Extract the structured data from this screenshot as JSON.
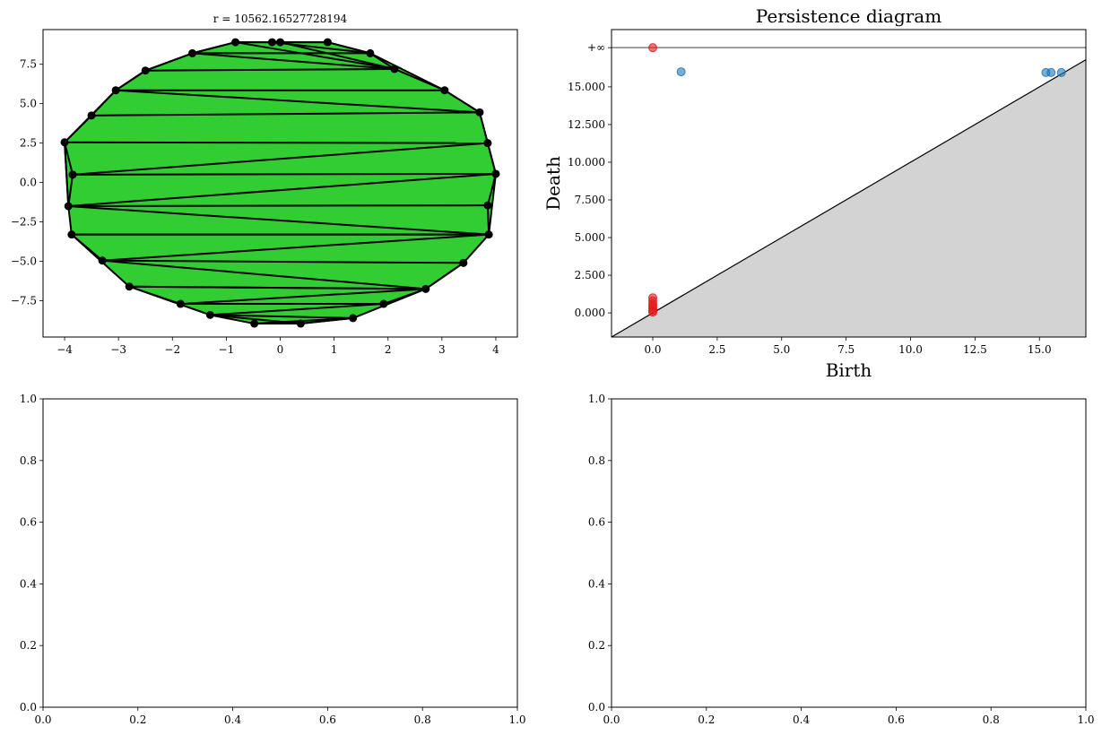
{
  "chart_data": [
    {
      "id": "complex",
      "type": "scatter",
      "title": "r = 10562.16527728194",
      "xlim": [
        -4.4,
        4.4
      ],
      "ylim": [
        -9.8,
        9.7
      ],
      "x_ticks": [
        {
          "v": -4,
          "label": "−4"
        },
        {
          "v": -3,
          "label": "−3"
        },
        {
          "v": -2,
          "label": "−2"
        },
        {
          "v": -1,
          "label": "−1"
        },
        {
          "v": 0,
          "label": "0"
        },
        {
          "v": 1,
          "label": "1"
        },
        {
          "v": 2,
          "label": "2"
        },
        {
          "v": 3,
          "label": "3"
        },
        {
          "v": 4,
          "label": "4"
        }
      ],
      "y_ticks": [
        {
          "v": -7.5,
          "label": "−7.5"
        },
        {
          "v": -5,
          "label": "−5.0"
        },
        {
          "v": -2.5,
          "label": "−2.5"
        },
        {
          "v": 0,
          "label": "0.0"
        },
        {
          "v": 2.5,
          "label": "2.5"
        },
        {
          "v": 5,
          "label": "5.0"
        },
        {
          "v": 7.5,
          "label": "7.5"
        }
      ],
      "fill_color": "#32cd32",
      "points": [
        [
          -0.83,
          8.9
        ],
        [
          -0.15,
          8.9
        ],
        [
          0.0,
          8.9
        ],
        [
          0.88,
          8.9
        ],
        [
          1.67,
          8.2
        ],
        [
          2.12,
          7.2
        ],
        [
          -1.63,
          8.2
        ],
        [
          -2.5,
          7.1
        ],
        [
          -3.05,
          5.85
        ],
        [
          3.05,
          5.85
        ],
        [
          3.7,
          4.45
        ],
        [
          -3.5,
          4.25
        ],
        [
          -4.0,
          2.55
        ],
        [
          3.85,
          2.5
        ],
        [
          4.0,
          0.55
        ],
        [
          -3.85,
          0.5
        ],
        [
          -3.93,
          -1.5
        ],
        [
          3.85,
          -1.45
        ],
        [
          3.87,
          -3.3
        ],
        [
          -3.87,
          -3.3
        ],
        [
          -3.3,
          -4.95
        ],
        [
          3.4,
          -5.1
        ],
        [
          2.7,
          -6.75
        ],
        [
          -2.8,
          -6.6
        ],
        [
          -1.85,
          -7.7
        ],
        [
          1.92,
          -7.7
        ],
        [
          -1.3,
          -8.4
        ],
        [
          1.35,
          -8.6
        ],
        [
          -0.48,
          -8.95
        ],
        [
          0.38,
          -8.95
        ]
      ],
      "edges": [
        [
          0,
          1
        ],
        [
          1,
          2
        ],
        [
          2,
          3
        ],
        [
          3,
          4
        ],
        [
          4,
          5
        ],
        [
          0,
          6
        ],
        [
          6,
          7
        ],
        [
          7,
          8
        ],
        [
          5,
          9
        ],
        [
          9,
          10
        ],
        [
          8,
          11
        ],
        [
          11,
          12
        ],
        [
          10,
          13
        ],
        [
          13,
          14
        ],
        [
          12,
          15
        ],
        [
          15,
          16
        ],
        [
          14,
          16
        ],
        [
          16,
          17
        ],
        [
          17,
          18
        ],
        [
          18,
          19
        ],
        [
          19,
          20
        ],
        [
          20,
          21
        ],
        [
          21,
          22
        ],
        [
          22,
          23
        ],
        [
          23,
          24
        ],
        [
          24,
          25
        ],
        [
          25,
          26
        ],
        [
          26,
          27
        ],
        [
          27,
          28
        ],
        [
          28,
          29
        ],
        [
          27,
          29
        ],
        [
          25,
          22
        ],
        [
          0,
          5
        ],
        [
          6,
          5
        ],
        [
          7,
          5
        ],
        [
          8,
          9
        ],
        [
          8,
          10
        ],
        [
          11,
          10
        ],
        [
          12,
          13
        ],
        [
          15,
          13
        ],
        [
          15,
          14
        ],
        [
          16,
          18
        ],
        [
          19,
          18
        ],
        [
          20,
          18
        ],
        [
          20,
          22
        ],
        [
          23,
          22
        ],
        [
          24,
          22
        ],
        [
          26,
          29
        ],
        [
          1,
          4
        ],
        [
          6,
          4
        ],
        [
          2,
          5
        ],
        [
          12,
          16
        ],
        [
          14,
          17
        ]
      ]
    },
    {
      "id": "persistence",
      "type": "scatter",
      "title": "Persistence diagram",
      "xlabel": "Birth",
      "ylabel": "Death",
      "xlim": [
        -1.6,
        16.8
      ],
      "ylim": [
        -1.6,
        18.8
      ],
      "inf_value": 17.6,
      "inf_label": "+∞",
      "x_ticks": [
        {
          "v": 0,
          "label": "0.0"
        },
        {
          "v": 2.5,
          "label": "2.5"
        },
        {
          "v": 5,
          "label": "5.0"
        },
        {
          "v": 7.5,
          "label": "7.5"
        },
        {
          "v": 10,
          "label": "10.0"
        },
        {
          "v": 12.5,
          "label": "12.5"
        },
        {
          "v": 15,
          "label": "15.0"
        }
      ],
      "y_ticks": [
        {
          "v": 0,
          "label": "0.000"
        },
        {
          "v": 2.5,
          "label": "2.500"
        },
        {
          "v": 5,
          "label": "5.000"
        },
        {
          "v": 7.5,
          "label": "7.500"
        },
        {
          "v": 10,
          "label": "10.000"
        },
        {
          "v": 12.5,
          "label": "12.500"
        },
        {
          "v": 15,
          "label": "15.000"
        }
      ],
      "series": [
        {
          "color": "#e31a1c",
          "points": [
            [
              0,
              17.6
            ],
            [
              0,
              1.0
            ],
            [
              0,
              0.8
            ],
            [
              0,
              0.6
            ],
            [
              0,
              0.45
            ],
            [
              0,
              0.3
            ],
            [
              0,
              0.15
            ],
            [
              0,
              0.05
            ]
          ]
        },
        {
          "color": "#1f77b4",
          "points": [
            [
              1.1,
              16.0
            ],
            [
              15.25,
              15.95
            ],
            [
              15.45,
              15.95
            ],
            [
              15.85,
              15.95
            ]
          ]
        }
      ]
    },
    {
      "id": "empty-left",
      "type": "scatter",
      "xlim": [
        0,
        1
      ],
      "ylim": [
        0,
        1
      ],
      "x_ticks": [
        {
          "v": 0,
          "label": "0.0"
        },
        {
          "v": 0.2,
          "label": "0.2"
        },
        {
          "v": 0.4,
          "label": "0.4"
        },
        {
          "v": 0.6,
          "label": "0.6"
        },
        {
          "v": 0.8,
          "label": "0.8"
        },
        {
          "v": 1,
          "label": "1.0"
        }
      ],
      "y_ticks": [
        {
          "v": 0,
          "label": "0.0"
        },
        {
          "v": 0.2,
          "label": "0.2"
        },
        {
          "v": 0.4,
          "label": "0.4"
        },
        {
          "v": 0.6,
          "label": "0.6"
        },
        {
          "v": 0.8,
          "label": "0.8"
        },
        {
          "v": 1,
          "label": "1.0"
        }
      ]
    },
    {
      "id": "empty-right",
      "type": "scatter",
      "xlim": [
        0,
        1
      ],
      "ylim": [
        0,
        1
      ],
      "x_ticks": [
        {
          "v": 0,
          "label": "0.0"
        },
        {
          "v": 0.2,
          "label": "0.2"
        },
        {
          "v": 0.4,
          "label": "0.4"
        },
        {
          "v": 0.6,
          "label": "0.6"
        },
        {
          "v": 0.8,
          "label": "0.8"
        },
        {
          "v": 1,
          "label": "1.0"
        }
      ],
      "y_ticks": [
        {
          "v": 0,
          "label": "0.0"
        },
        {
          "v": 0.2,
          "label": "0.2"
        },
        {
          "v": 0.4,
          "label": "0.4"
        },
        {
          "v": 0.6,
          "label": "0.6"
        },
        {
          "v": 0.8,
          "label": "0.8"
        },
        {
          "v": 1,
          "label": "1.0"
        }
      ]
    }
  ]
}
